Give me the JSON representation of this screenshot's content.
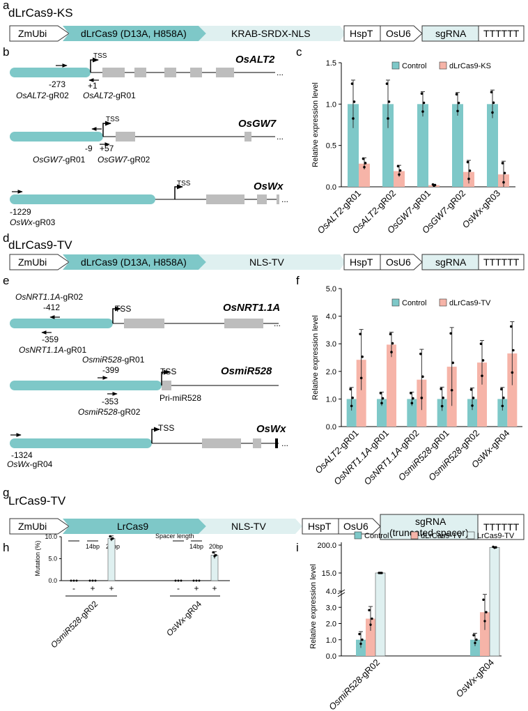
{
  "colors": {
    "teal": "#7ec8c8",
    "teal_light": "#dff0f0",
    "salmon": "#f6b4a8",
    "gray": "#bdbdbd",
    "stroke": "#333333"
  },
  "panels": {
    "a": "a",
    "b": "b",
    "c": "c",
    "d": "d",
    "e": "e",
    "f": "f",
    "g": "g",
    "h": "h",
    "i": "i"
  },
  "constructs": {
    "a": {
      "title": "dLrCas9-KS",
      "parts": [
        "ZmUbi",
        "dLrCas9 (D13A, H858A)",
        "KRAB-SRDX-NLS",
        "HspT",
        "OsU6",
        "sgRNA",
        "TTTTTT"
      ]
    },
    "d": {
      "title": "dLrCas9-TV",
      "parts": [
        "ZmUbi",
        "dLrCas9 (D13A, H858A)",
        "NLS-TV",
        "HspT",
        "OsU6",
        "sgRNA",
        "TTTTTT"
      ]
    },
    "g": {
      "title": "LrCas9-TV",
      "parts": [
        "ZmUbi",
        "LrCas9",
        "NLS-TV",
        "HspT",
        "OsU6",
        "sgRNA",
        "(truncated spacer)",
        "TTTTTT"
      ]
    }
  },
  "gene_maps_b": {
    "tss": "TSS",
    "altg": {
      "name": "OsALT2",
      "pos1": "-273",
      "pos2": "+1",
      "g1": "OsALT2",
      "g1s": "-gR02",
      "g2": "OsALT2",
      "g2s": "-gR01"
    },
    "gw7": {
      "name": "OsGW7",
      "pos1": "-9",
      "pos2": "+57",
      "g1": "OsGW7",
      "g1s": "-gR01",
      "g2": "OsGW7",
      "g2s": "-gR02"
    },
    "wx": {
      "name": "OsWx",
      "pos1": "-1229",
      "g1": "OsWx",
      "g1s": "-gR03"
    }
  },
  "gene_maps_e": {
    "tss": "TSS",
    "nrt": {
      "name": "OsNRT1.1A",
      "g1": "OsNRT1.1A",
      "g1s": "-gR02",
      "pos1": "-412",
      "pos2": "-359",
      "g2": "OsNRT1.1A",
      "g2s": "-gR01"
    },
    "mir": {
      "name": "OsmiR528",
      "g1": "OsmiR528",
      "g1s": "-gR01",
      "pos1": "-399",
      "pos2": "-353",
      "g2": "OsmiR528",
      "g2s": "-gR02",
      "pri": "Pri-miR528"
    },
    "wx": {
      "name": "OsWx",
      "pos1": "-1324",
      "g1": "OsWx",
      "g1s": "-gR04"
    }
  },
  "chart_data": [
    {
      "panel": "c",
      "type": "bar",
      "ylabel": "Relative expression level",
      "ylim": [
        0,
        1.5
      ],
      "yticks": [
        "0.0",
        "0.5",
        "1.0",
        "1.5"
      ],
      "categories": [
        "OsALT2-gR01",
        "OsALT2-gR02",
        "OsGW7-gR01",
        "OsGW7-gR02",
        "OsWx-gR03"
      ],
      "series": [
        {
          "name": "Control",
          "values": [
            1.0,
            1.0,
            1.0,
            1.0,
            1.0
          ],
          "err": [
            0.29,
            0.29,
            0.15,
            0.14,
            0.17
          ]
        },
        {
          "name": "dLrCas9-KS",
          "values": [
            0.28,
            0.19,
            0.02,
            0.18,
            0.15
          ],
          "err": [
            0.07,
            0.07,
            0.01,
            0.14,
            0.16
          ]
        }
      ]
    },
    {
      "panel": "f",
      "type": "bar",
      "ylabel": "Relative expression level",
      "ylim": [
        0,
        5
      ],
      "yticks": [
        "0.0",
        "1.0",
        "2.0",
        "3.0",
        "4.0",
        "5.0"
      ],
      "categories": [
        "OsALT2-gR01",
        "OsNRT1.1A-gR01",
        "OsNRT1.1A-gR02",
        "OsmiR528-gR01",
        "OsmiR528-gR02",
        "OsWx-gR04"
      ],
      "series": [
        {
          "name": "Control",
          "values": [
            1.0,
            1.0,
            1.0,
            1.0,
            1.0,
            1.0
          ],
          "err": [
            0.42,
            0.25,
            0.25,
            0.43,
            0.4,
            0.42
          ]
        },
        {
          "name": "dLrCas9-TV",
          "values": [
            2.42,
            2.97,
            1.7,
            2.17,
            2.32,
            2.65
          ],
          "err": [
            1.1,
            0.45,
            1.1,
            1.42,
            0.8,
            1.15
          ]
        }
      ]
    },
    {
      "panel": "h",
      "type": "bar",
      "ylabel": "Mutation (%)",
      "ylim": [
        0,
        10
      ],
      "yticks": [
        "0.0",
        "5.0",
        "10.0"
      ],
      "header": "Spacer length",
      "len1": "14bp",
      "len2": "20bp",
      "signs": [
        "-",
        "+",
        "+"
      ],
      "groups": [
        "OsmiR528-gR02",
        "OsWx-gR04"
      ],
      "values": [
        [
          0,
          0,
          9.6
        ],
        [
          0,
          0,
          5.8
        ]
      ],
      "err": [
        [
          0,
          0,
          0.6
        ],
        [
          0,
          0,
          0.8
        ]
      ]
    },
    {
      "panel": "i",
      "type": "bar",
      "ylabel": "Relative expression level",
      "yticks": [
        "0.0",
        "1.0",
        "2.0",
        "3.0",
        "4.0",
        "15.0",
        "200.0"
      ],
      "categories": [
        "OsmiR528-gR02",
        "OsWx-gR04"
      ],
      "series": [
        {
          "name": "Control",
          "values": [
            1.0,
            1.0
          ]
        },
        {
          "name": "dLrCas9-TV",
          "values": [
            2.3,
            2.7
          ]
        },
        {
          "name": "LrCas9-TV",
          "values": [
            15.2,
            185
          ]
        }
      ]
    }
  ]
}
